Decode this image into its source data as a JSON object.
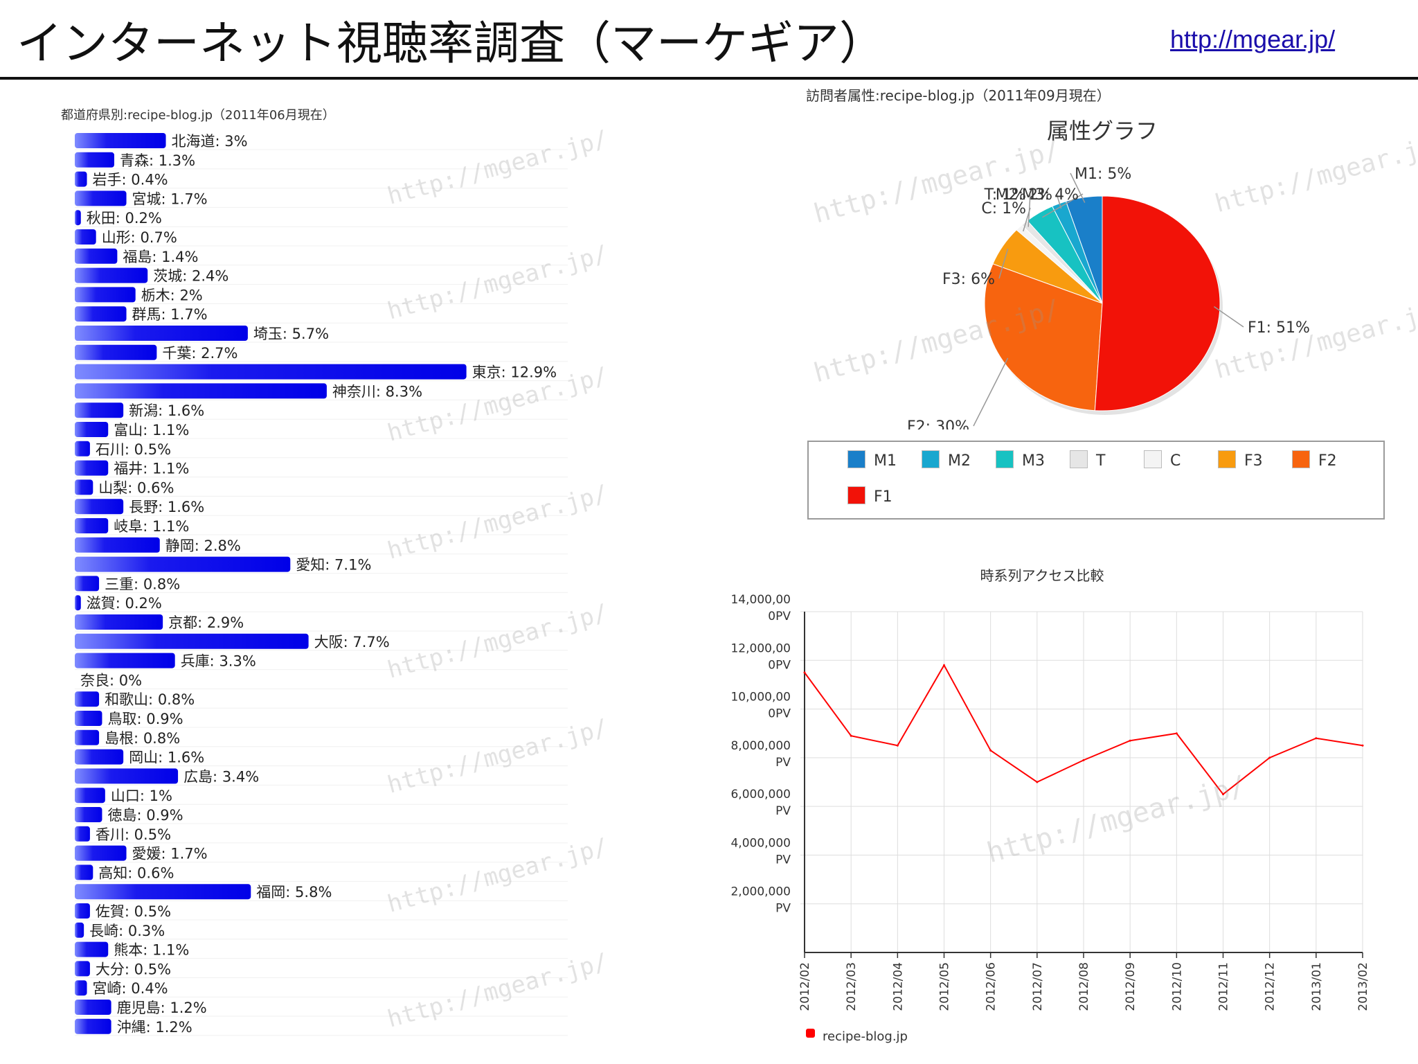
{
  "header": {
    "title": "インターネット視聴率調査（マーケギア）",
    "link": "http://mgear.jp/"
  },
  "watermark": "http://mgear.jp/",
  "chart_data": [
    {
      "type": "bar",
      "orientation": "horizontal",
      "title": "都道府県別:recipe-blog.jp（2011年06月現在）",
      "categories": [
        "北海道",
        "青森",
        "岩手",
        "宮城",
        "秋田",
        "山形",
        "福島",
        "茨城",
        "栃木",
        "群馬",
        "埼玉",
        "千葉",
        "東京",
        "神奈川",
        "新潟",
        "富山",
        "石川",
        "福井",
        "山梨",
        "長野",
        "岐阜",
        "静岡",
        "愛知",
        "三重",
        "滋賀",
        "京都",
        "大阪",
        "兵庫",
        "奈良",
        "和歌山",
        "鳥取",
        "島根",
        "岡山",
        "広島",
        "山口",
        "徳島",
        "香川",
        "愛媛",
        "高知",
        "福岡",
        "佐賀",
        "長崎",
        "熊本",
        "大分",
        "宮崎",
        "鹿児島",
        "沖縄"
      ],
      "values": [
        3,
        1.3,
        0.4,
        1.7,
        0.2,
        0.7,
        1.4,
        2.4,
        2,
        1.7,
        5.7,
        2.7,
        12.9,
        8.3,
        1.6,
        1.1,
        0.5,
        1.1,
        0.6,
        1.6,
        1.1,
        2.8,
        7.1,
        0.8,
        0.2,
        2.9,
        7.7,
        3.3,
        0,
        0.8,
        0.9,
        0.8,
        1.6,
        3.4,
        1,
        0.9,
        0.5,
        1.7,
        0.6,
        5.8,
        0.5,
        0.3,
        1.1,
        0.5,
        0.4,
        1.2,
        1.2
      ],
      "labels": [
        "北海道: 3%",
        "青森: 1.3%",
        "岩手: 0.4%",
        "宮城: 1.7%",
        "秋田: 0.2%",
        "山形: 0.7%",
        "福島: 1.4%",
        "茨城: 2.4%",
        "栃木: 2%",
        "群馬: 1.7%",
        "埼玉: 5.7%",
        "千葉: 2.7%",
        "東京: 12.9%",
        "神奈川: 8.3%",
        "新潟: 1.6%",
        "富山: 1.1%",
        "石川: 0.5%",
        "福井: 1.1%",
        "山梨: 0.6%",
        "長野: 1.6%",
        "岐阜: 1.1%",
        "静岡: 2.8%",
        "愛知: 7.1%",
        "三重: 0.8%",
        "滋賀: 0.2%",
        "京都: 2.9%",
        "大阪: 7.7%",
        "兵庫: 3.3%",
        "奈良: 0%",
        "和歌山: 0.8%",
        "鳥取: 0.9%",
        "島根: 0.8%",
        "岡山: 1.6%",
        "広島: 3.4%",
        "山口: 1%",
        "徳島: 0.9%",
        "香川: 0.5%",
        "愛媛: 1.7%",
        "高知: 0.6%",
        "福岡: 5.8%",
        "佐賀: 0.5%",
        "長崎: 0.3%",
        "熊本: 1.1%",
        "大分: 0.5%",
        "宮崎: 0.4%",
        "鹿児島: 1.2%",
        "沖縄: 1.2%"
      ],
      "xlim": [
        0,
        13
      ],
      "color": "#1a1aee"
    },
    {
      "type": "pie",
      "header_label": "訪問者属性:recipe-blog.jp（2011年09月現在）",
      "title": "属性グラフ",
      "slices": [
        {
          "name": "M1",
          "value": 5,
          "label": "M1: 5%",
          "color": "#1a7fc9"
        },
        {
          "name": "M2",
          "value": 2,
          "label": "M2: 2%",
          "color": "#19a7cf"
        },
        {
          "name": "M3",
          "value": 4,
          "label": "M3: 4%",
          "color": "#17c2c2"
        },
        {
          "name": "T",
          "value": 1,
          "label": "T: 1%",
          "color": "#e6e6e6"
        },
        {
          "name": "C",
          "value": 1,
          "label": "C: 1%",
          "color": "#f4f4f4"
        },
        {
          "name": "F3",
          "value": 6,
          "label": "F3: 6%",
          "color": "#f89b0f"
        },
        {
          "name": "F2",
          "value": 30,
          "label": "F2: 30%",
          "color": "#f7640f"
        },
        {
          "name": "F1",
          "value": 51,
          "label": "F1: 51%",
          "color": "#f21208"
        }
      ],
      "legend": [
        "M1",
        "M2",
        "M3",
        "T",
        "C",
        "F3",
        "F2",
        "F1"
      ],
      "legend_position": "bottom"
    },
    {
      "type": "line",
      "title": "時系列アクセス比較",
      "x": [
        "2012/02",
        "2012/03",
        "2012/04",
        "2012/05",
        "2012/06",
        "2012/07",
        "2012/08",
        "2012/09",
        "2012/10",
        "2012/11",
        "2012/12",
        "2013/01",
        "2013/02"
      ],
      "series": [
        {
          "name": "recipe-blog.jp",
          "color": "#ff0000",
          "values": [
            11500000,
            8900000,
            8500000,
            11800000,
            8300000,
            7000000,
            7900000,
            8700000,
            9000000,
            6500000,
            8000000,
            8800000,
            8500000
          ]
        }
      ],
      "yticks": [
        {
          "value": 2000000,
          "line1": "2,000,000",
          "line2": "PV"
        },
        {
          "value": 4000000,
          "line1": "4,000,000",
          "line2": "PV"
        },
        {
          "value": 6000000,
          "line1": "6,000,000",
          "line2": "PV"
        },
        {
          "value": 8000000,
          "line1": "8,000,000",
          "line2": "PV"
        },
        {
          "value": 10000000,
          "line1": "10,000,00",
          "line2": "0PV"
        },
        {
          "value": 12000000,
          "line1": "12,000,00",
          "line2": "0PV"
        },
        {
          "value": 14000000,
          "line1": "14,000,00",
          "line2": "0PV"
        }
      ],
      "ylim": [
        0,
        14000000
      ],
      "grid": true,
      "legend_position": "bottom-left"
    }
  ]
}
